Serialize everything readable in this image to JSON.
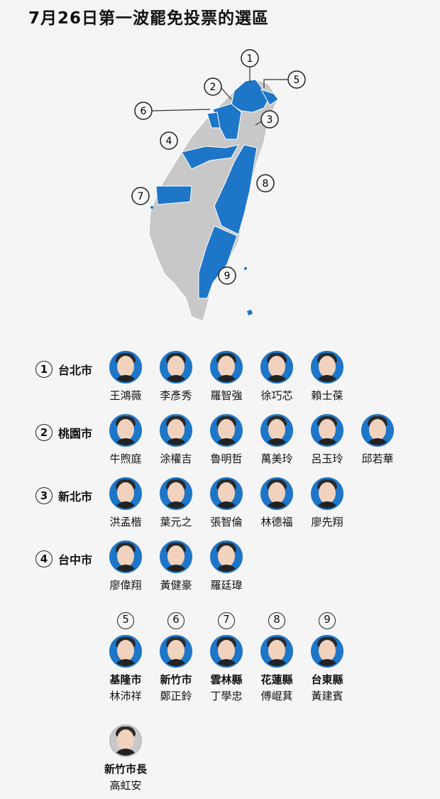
{
  "title": "7月26日第一波罷免投票的選區",
  "map": {
    "labels": [
      "1",
      "2",
      "3",
      "4",
      "5",
      "6",
      "7",
      "8",
      "9"
    ],
    "highlight_color": "#1e76c8",
    "base_color": "#c8c8c8"
  },
  "rows": [
    {
      "num": "1",
      "city": "台北市",
      "people": [
        "王鴻薇",
        "李彥秀",
        "羅智強",
        "徐巧芯",
        "賴士葆"
      ]
    },
    {
      "num": "2",
      "city": "桃園市",
      "people": [
        "牛煦庭",
        "涂權吉",
        "魯明哲",
        "萬美玲",
        "呂玉玲",
        "邱若華"
      ]
    },
    {
      "num": "3",
      "city": "新北市",
      "people": [
        "洪孟楷",
        "葉元之",
        "張智倫",
        "林德福",
        "廖先翔"
      ]
    },
    {
      "num": "4",
      "city": "台中市",
      "people": [
        "廖偉翔",
        "黃健豪",
        "羅廷瑋"
      ]
    }
  ],
  "singles": [
    {
      "num": "5",
      "city": "基隆市",
      "name": "林沛祥"
    },
    {
      "num": "6",
      "city": "新竹市",
      "name": "鄭正鈴"
    },
    {
      "num": "7",
      "city": "雲林縣",
      "name": "丁學忠"
    },
    {
      "num": "8",
      "city": "花蓮縣",
      "name": "傅崐萁"
    },
    {
      "num": "9",
      "city": "台東縣",
      "name": "黃建賓"
    }
  ],
  "mayor": {
    "city": "新竹市長",
    "name": "高虹安"
  }
}
